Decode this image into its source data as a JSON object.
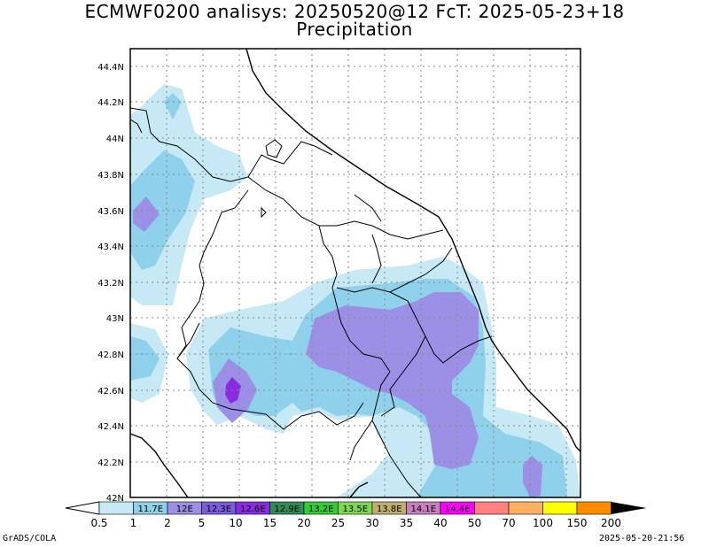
{
  "title_line1": "ECMWF0200 analisys: 20250520@12 FcT: 2025-05-23+18",
  "title_line2": "Precipitation",
  "lat_labels": [
    "44.4N",
    "44.2N",
    "44N",
    "43.8N",
    "43.6N",
    "43.4N",
    "43.2N",
    "43N",
    "42.8N",
    "42.6N",
    "42.4N",
    "42.2N",
    "42N"
  ],
  "colorbar": {
    "levels": [
      "0.5",
      "1",
      "2",
      "5",
      "10",
      "15",
      "20",
      "25",
      "30",
      "35",
      "40",
      "50",
      "70",
      "100",
      "150",
      "200"
    ],
    "colors": [
      "#c6e9f5",
      "#8fd0ea",
      "#9b8fe6",
      "#7b5cd9",
      "#8a2be2",
      "#2e8b57",
      "#33cc33",
      "#7fd94f",
      "#bfae6e",
      "#c77fbf",
      "#ff00ff",
      "#ff8080",
      "#ffb060",
      "#ffff00",
      "#ff8c00",
      "#ff0000",
      "#8b0000"
    ],
    "cell_labels": [
      "11.7E",
      "12E",
      "12.3E",
      "12.6E",
      "12.9E",
      "13.2E",
      "13.5E",
      "13.8E",
      "14.1E",
      "14.4E"
    ]
  },
  "footer_left": "GrADS/COLA",
  "footer_right": "2025-05-20-21:56"
}
